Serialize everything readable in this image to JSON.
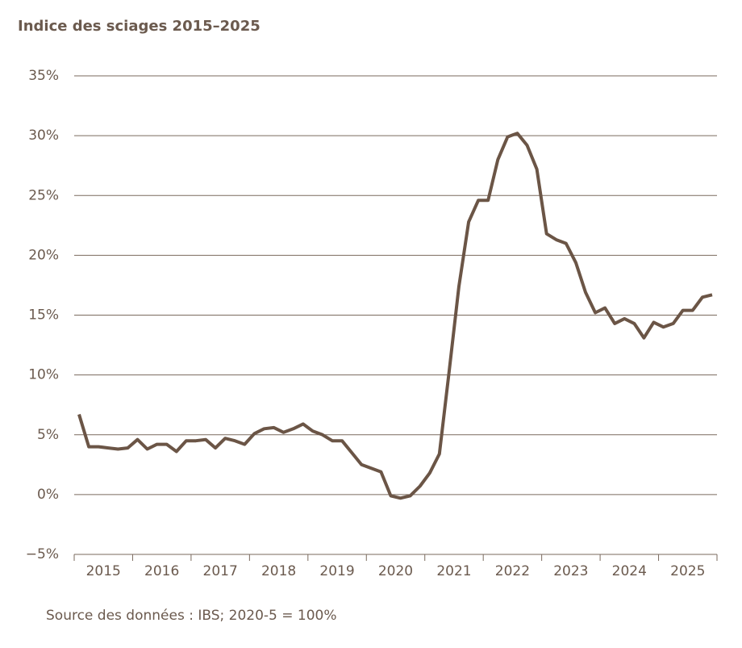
{
  "chart_data": {
    "type": "line",
    "title": "Indice des sciages  2015–2025",
    "source": "Source des données : IBS; 2020-5 = 100%",
    "categories": [
      null,
      null,
      "2015",
      null,
      null,
      null,
      null,
      null,
      "2016",
      null,
      null,
      null,
      null,
      null,
      "2017",
      null,
      null,
      null,
      null,
      null,
      "2018",
      null,
      null,
      null,
      null,
      null,
      "2019",
      null,
      null,
      null,
      null,
      null,
      "2020",
      null,
      null,
      null,
      null,
      null,
      "2021",
      null,
      null,
      null,
      null,
      null,
      "2022",
      null,
      null,
      null,
      null,
      null,
      "2023",
      null,
      null,
      null,
      null,
      null,
      "2024",
      null,
      null,
      null,
      null,
      null,
      "2025",
      null,
      null,
      null
    ],
    "series": [
      {
        "name": "Indice des sciages",
        "color": "#6b5546",
        "values": [
          6.7,
          4.0,
          4.0,
          3.9,
          3.8,
          3.9,
          4.6,
          3.8,
          4.2,
          4.2,
          3.6,
          4.5,
          4.5,
          4.6,
          3.9,
          4.7,
          4.5,
          4.2,
          5.1,
          5.5,
          5.6,
          5.2,
          5.5,
          5.9,
          5.3,
          5.0,
          4.5,
          4.5,
          3.5,
          2.5,
          2.2,
          1.9,
          -0.1,
          -0.3,
          -0.1,
          0.7,
          1.8,
          3.4,
          10.3,
          17.4,
          22.8,
          24.6,
          24.6,
          28.0,
          29.9,
          30.2,
          29.2,
          27.2,
          21.8,
          21.3,
          21.0,
          19.4,
          16.9,
          15.2,
          15.6,
          14.3,
          14.7,
          14.3,
          13.1,
          14.4,
          14.0,
          14.3,
          15.4,
          15.4,
          16.5,
          16.7
        ]
      }
    ],
    "ylim": [
      -5,
      35
    ],
    "yticks": [
      {
        "value": -5,
        "label": "−5%"
      },
      {
        "value": 0,
        "label": "0%"
      },
      {
        "value": 5,
        "label": "5%"
      },
      {
        "value": 10,
        "label": "10%"
      },
      {
        "value": 15,
        "label": "15%"
      },
      {
        "value": 20,
        "label": "20%"
      },
      {
        "value": 25,
        "label": "25%"
      },
      {
        "value": 30,
        "label": "30%"
      },
      {
        "value": 35,
        "label": "35%"
      }
    ],
    "grid": true
  }
}
